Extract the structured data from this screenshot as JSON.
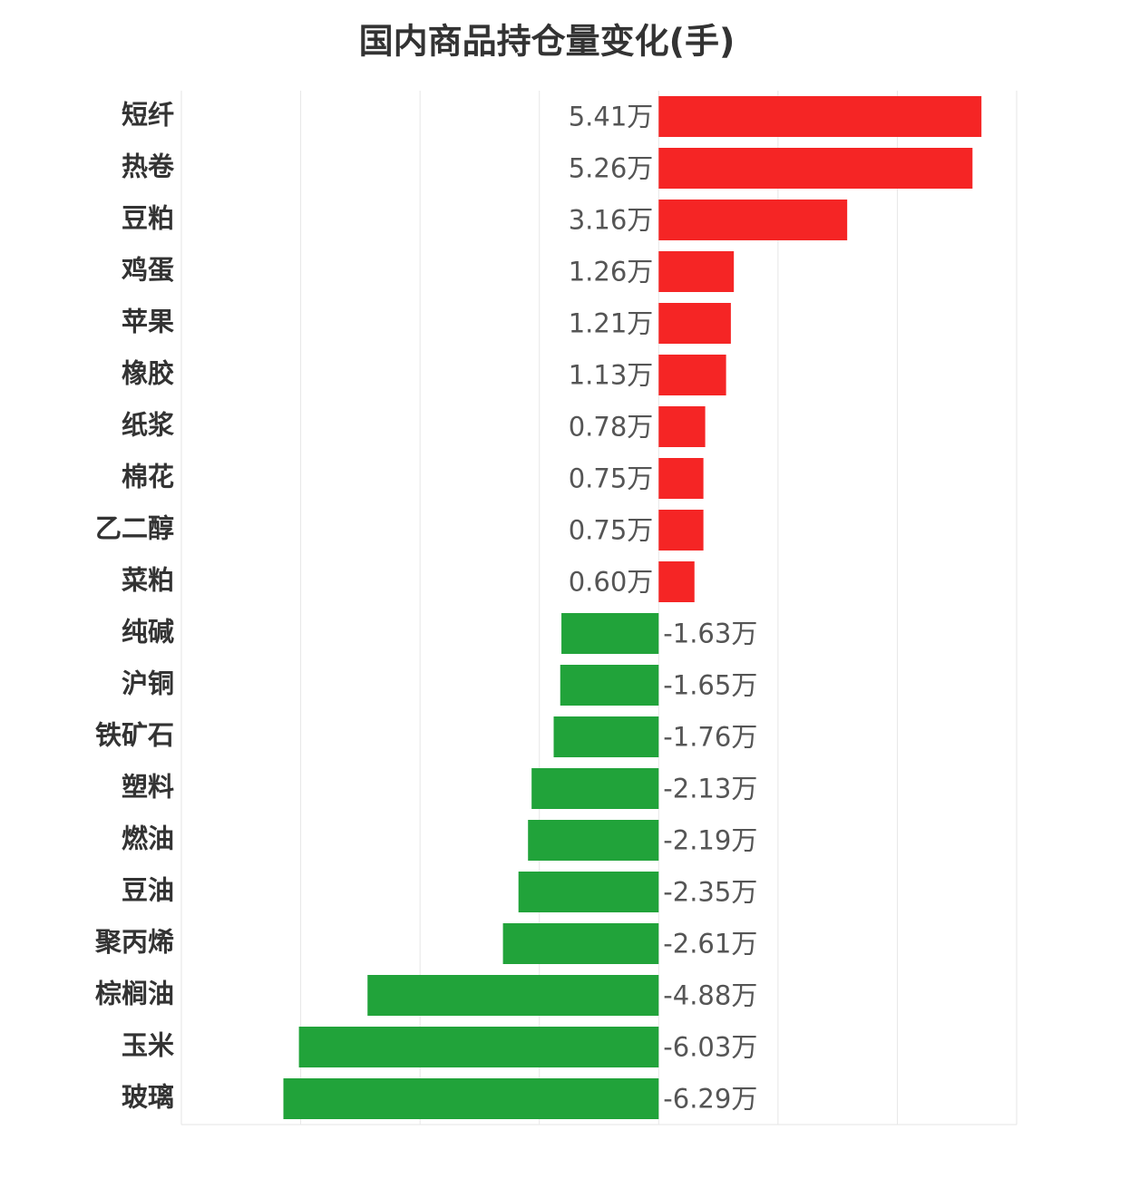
{
  "chart_data": {
    "type": "barh",
    "title": "国内商品持仓量变化(手)",
    "categories": [
      "短纤",
      "热卷",
      "豆粕",
      "鸡蛋",
      "苹果",
      "橡胶",
      "纸浆",
      "棉花",
      "乙二醇",
      "菜粕",
      "纯碱",
      "沪铜",
      "铁矿石",
      "塑料",
      "燃油",
      "豆油",
      "聚丙烯",
      "棕榈油",
      "玉米",
      "玻璃"
    ],
    "values": [
      5.41,
      5.26,
      3.16,
      1.26,
      1.21,
      1.13,
      0.78,
      0.75,
      0.75,
      0.6,
      -1.63,
      -1.65,
      -1.76,
      -2.13,
      -2.19,
      -2.35,
      -2.61,
      -4.88,
      -6.03,
      -6.29
    ],
    "value_labels": [
      "5.41万",
      "5.26万",
      "3.16万",
      "1.26万",
      "1.21万",
      "1.13万",
      "0.78万",
      "0.75万",
      "0.75万",
      "0.60万",
      "-1.63万",
      "-1.65万",
      "-1.76万",
      "-2.13万",
      "-2.19万",
      "-2.35万",
      "-2.61万",
      "-4.88万",
      "-6.03万",
      "-6.29万"
    ],
    "positive_color": "#f52525",
    "negative_color": "#21a33a",
    "xlim": [
      -8,
      6
    ],
    "xticks": [
      -8,
      -6,
      -4,
      -2,
      0,
      2,
      4,
      6
    ],
    "grid": true
  }
}
